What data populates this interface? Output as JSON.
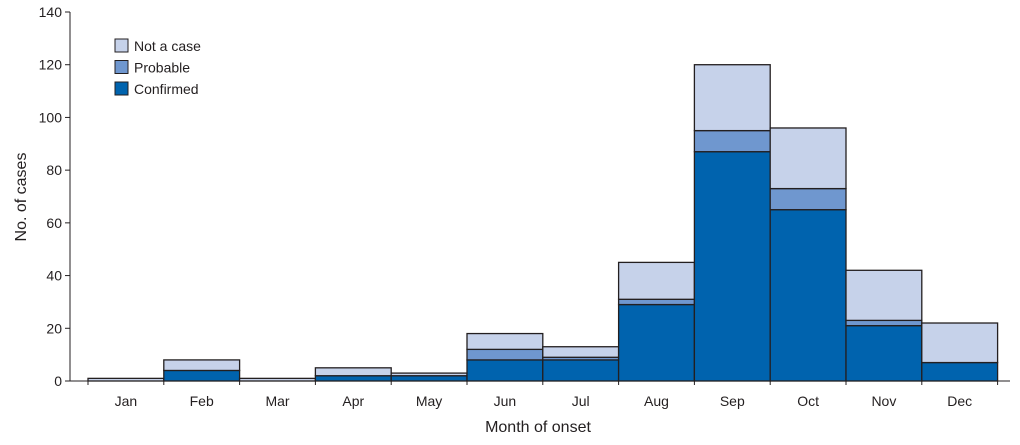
{
  "chart_data": {
    "type": "bar",
    "stacked": true,
    "title": "",
    "xlabel": "Month of onset",
    "ylabel": "No. of cases",
    "ylim": [
      0,
      140
    ],
    "yticks": [
      0,
      20,
      40,
      60,
      80,
      100,
      120,
      140
    ],
    "grid": false,
    "legend_position": "top-left",
    "categories": [
      "Jan",
      "Feb",
      "Mar",
      "Apr",
      "May",
      "Jun",
      "Jul",
      "Aug",
      "Sep",
      "Oct",
      "Nov",
      "Dec"
    ],
    "series": [
      {
        "name": "Confirmed",
        "color": "#0063ae",
        "values": [
          0,
          4,
          0,
          2,
          2,
          8,
          8,
          29,
          87,
          65,
          21,
          7
        ]
      },
      {
        "name": "Probable",
        "color": "#6f97cf",
        "values": [
          0,
          0,
          0,
          0,
          0,
          4,
          1,
          2,
          8,
          8,
          2,
          0
        ]
      },
      {
        "name": "Not a case",
        "color": "#c6d2ea",
        "values": [
          1,
          4,
          1,
          3,
          1,
          6,
          4,
          14,
          25,
          23,
          19,
          15
        ]
      }
    ],
    "legend_order": [
      "Not a case",
      "Probable",
      "Confirmed"
    ]
  }
}
